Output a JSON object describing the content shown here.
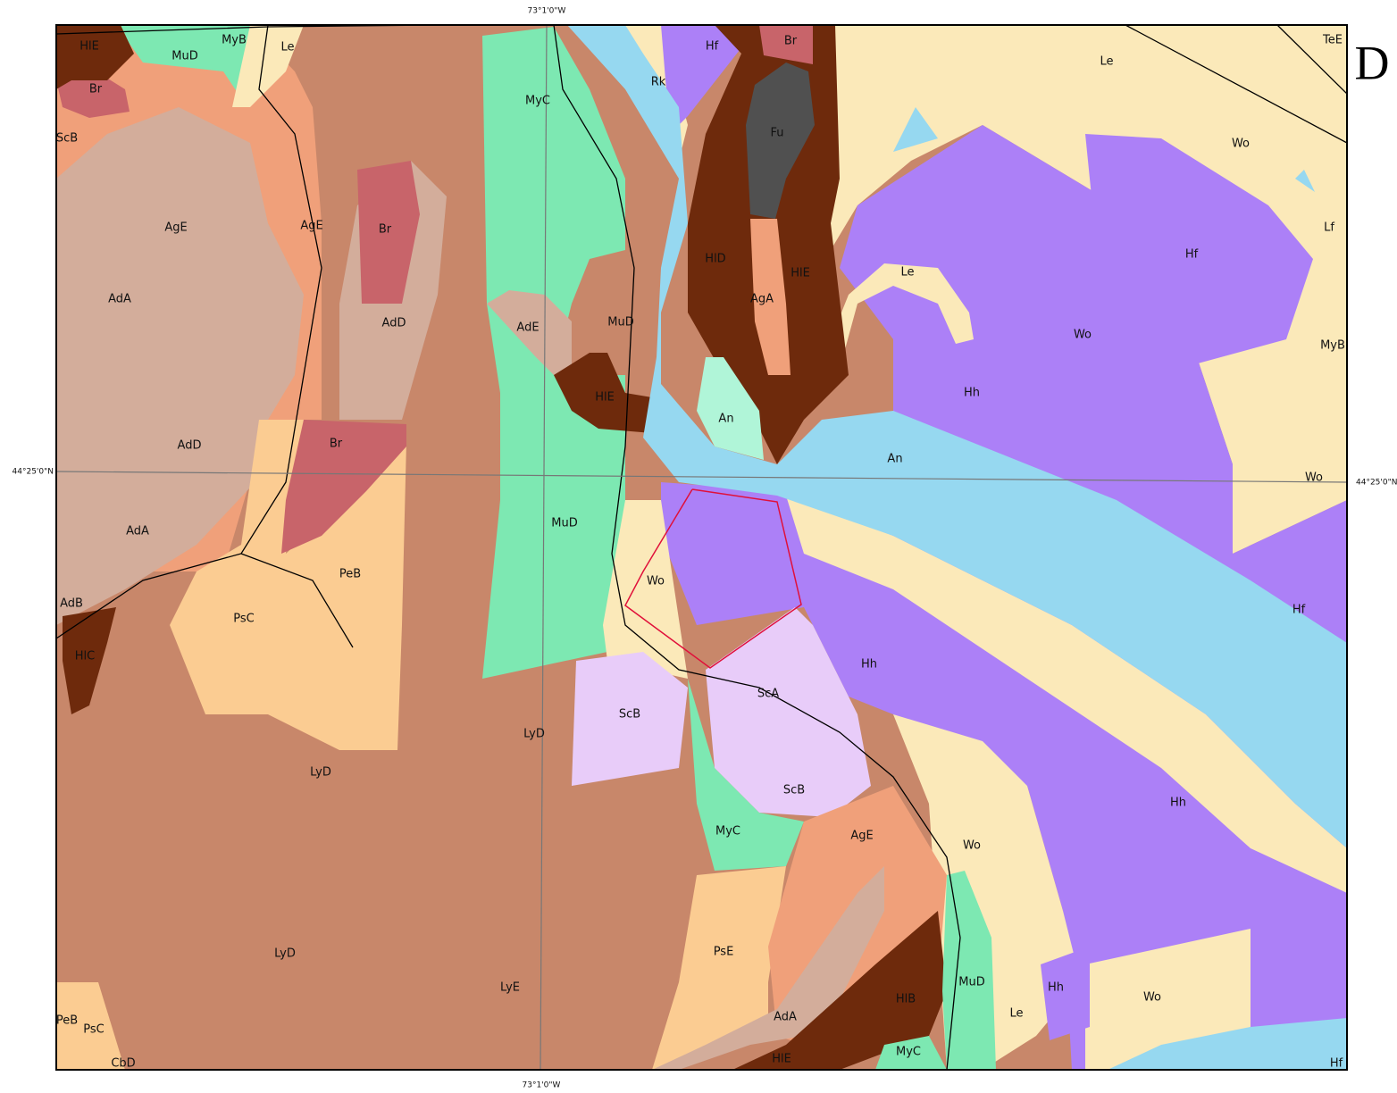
{
  "map": {
    "corner_letter": "D",
    "graticule": {
      "top_longitude": "73°1'0\"W",
      "bottom_longitude": "73°1'0\"W",
      "left_latitude": "44°25'0\"N",
      "right_latitude": "44°25'0\"N"
    },
    "unit_labels": [
      "HlE",
      "MuD",
      "MyB",
      "Le",
      "Br",
      "ScB",
      "MyC",
      "Rk",
      "Hf",
      "Br",
      "Fu",
      "Le",
      "TeE",
      "Wo",
      "AgE",
      "AgE",
      "Br",
      "HlD",
      "AgA",
      "HlE",
      "Le",
      "Hf",
      "Lf",
      "AdA",
      "AdD",
      "AdE",
      "MuD",
      "Wo",
      "MyB",
      "HlE",
      "An",
      "Hh",
      "AdD",
      "Br",
      "An",
      "Wo",
      "AdA",
      "MuD",
      "PeB",
      "Wo",
      "PsC",
      "AdB",
      "HlC",
      "Hf",
      "Hh",
      "ScA",
      "ScB",
      "LyD",
      "LyD",
      "ScB",
      "Hh",
      "MyC",
      "AgE",
      "Wo",
      "LyD",
      "PsE",
      "HlB",
      "MuD",
      "Hh",
      "Wo",
      "LyE",
      "Le",
      "AdA",
      "PeB",
      "PsC",
      "CbD",
      "HlE",
      "MyC",
      "Hf"
    ]
  }
}
